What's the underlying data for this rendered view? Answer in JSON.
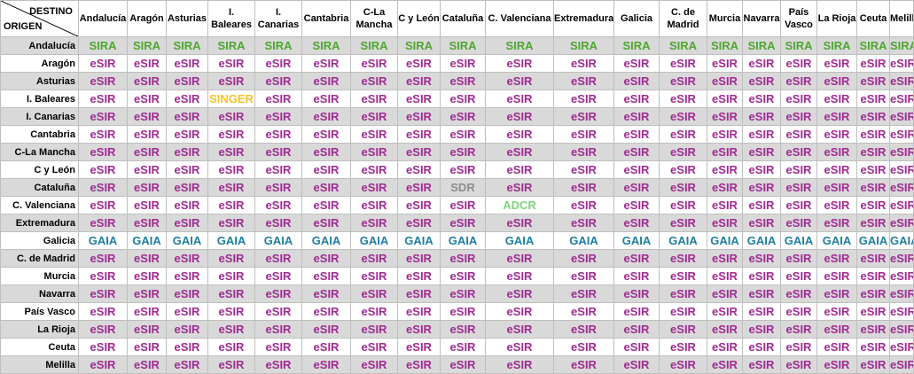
{
  "header": {
    "destino_label": "DESTINO",
    "origen_label": "ORIGEN"
  },
  "columns": [
    "Andalucía",
    "Aragón",
    "Asturias",
    "I. Baleares",
    "I. Canarias",
    "Cantabria",
    "C-La Mancha",
    "C y León",
    "Cataluña",
    "C. Valenciana",
    "Extremadura",
    "Galicia",
    "C. de Madrid",
    "Murcia",
    "Navarra",
    "País Vasco",
    "La Rioja",
    "Ceuta",
    "Melilla"
  ],
  "rows": [
    {
      "origin": "Andalucía",
      "cells": [
        "SIRA",
        "SIRA",
        "SIRA",
        "SIRA",
        "SIRA",
        "SIRA",
        "SIRA",
        "SIRA",
        "SIRA",
        "SIRA",
        "SIRA",
        "SIRA",
        "SIRA",
        "SIRA",
        "SIRA",
        "SIRA",
        "SIRA",
        "SIRA",
        "SIRA"
      ]
    },
    {
      "origin": "Aragón",
      "cells": [
        "eSIR",
        "eSIR",
        "eSIR",
        "eSIR",
        "eSIR",
        "eSIR",
        "eSIR",
        "eSIR",
        "eSIR",
        "eSIR",
        "eSIR",
        "eSIR",
        "eSIR",
        "eSIR",
        "eSIR",
        "eSIR",
        "eSIR",
        "eSIR",
        "eSIR"
      ]
    },
    {
      "origin": "Asturias",
      "cells": [
        "eSIR",
        "eSIR",
        "eSIR",
        "eSIR",
        "eSIR",
        "eSIR",
        "eSIR",
        "eSIR",
        "eSIR",
        "eSIR",
        "eSIR",
        "eSIR",
        "eSIR",
        "eSIR",
        "eSIR",
        "eSIR",
        "eSIR",
        "eSIR",
        "eSIR"
      ]
    },
    {
      "origin": "I. Baleares",
      "cells": [
        "eSIR",
        "eSIR",
        "eSIR",
        "SINGER",
        "eSIR",
        "eSIR",
        "eSIR",
        "eSIR",
        "eSIR",
        "eSIR",
        "eSIR",
        "eSIR",
        "eSIR",
        "eSIR",
        "eSIR",
        "eSIR",
        "eSIR",
        "eSIR",
        "eSIR"
      ]
    },
    {
      "origin": "I. Canarias",
      "cells": [
        "eSIR",
        "eSIR",
        "eSIR",
        "eSIR",
        "eSIR",
        "eSIR",
        "eSIR",
        "eSIR",
        "eSIR",
        "eSIR",
        "eSIR",
        "eSIR",
        "eSIR",
        "eSIR",
        "eSIR",
        "eSIR",
        "eSIR",
        "eSIR",
        "eSIR"
      ]
    },
    {
      "origin": "Cantabria",
      "cells": [
        "eSIR",
        "eSIR",
        "eSIR",
        "eSIR",
        "eSIR",
        "eSIR",
        "eSIR",
        "eSIR",
        "eSIR",
        "eSIR",
        "eSIR",
        "eSIR",
        "eSIR",
        "eSIR",
        "eSIR",
        "eSIR",
        "eSIR",
        "eSIR",
        "eSIR"
      ]
    },
    {
      "origin": "C-La Mancha",
      "cells": [
        "eSIR",
        "eSIR",
        "eSIR",
        "eSIR",
        "eSIR",
        "eSIR",
        "eSIR",
        "eSIR",
        "eSIR",
        "eSIR",
        "eSIR",
        "eSIR",
        "eSIR",
        "eSIR",
        "eSIR",
        "eSIR",
        "eSIR",
        "eSIR",
        "eSIR"
      ]
    },
    {
      "origin": "C y León",
      "cells": [
        "eSIR",
        "eSIR",
        "eSIR",
        "eSIR",
        "eSIR",
        "eSIR",
        "eSIR",
        "eSIR",
        "eSIR",
        "eSIR",
        "eSIR",
        "eSIR",
        "eSIR",
        "eSIR",
        "eSIR",
        "eSIR",
        "eSIR",
        "eSIR",
        "eSIR"
      ]
    },
    {
      "origin": "Cataluña",
      "cells": [
        "eSIR",
        "eSIR",
        "eSIR",
        "eSIR",
        "eSIR",
        "eSIR",
        "eSIR",
        "eSIR",
        "SDR",
        "eSIR",
        "eSIR",
        "eSIR",
        "eSIR",
        "eSIR",
        "eSIR",
        "eSIR",
        "eSIR",
        "eSIR",
        "eSIR"
      ]
    },
    {
      "origin": "C. Valenciana",
      "cells": [
        "eSIR",
        "eSIR",
        "eSIR",
        "eSIR",
        "eSIR",
        "eSIR",
        "eSIR",
        "eSIR",
        "eSIR",
        "ADCR",
        "eSIR",
        "eSIR",
        "eSIR",
        "eSIR",
        "eSIR",
        "eSIR",
        "eSIR",
        "eSIR",
        "eSIR"
      ]
    },
    {
      "origin": "Extremadura",
      "cells": [
        "eSIR",
        "eSIR",
        "eSIR",
        "eSIR",
        "eSIR",
        "eSIR",
        "eSIR",
        "eSIR",
        "eSIR",
        "eSIR",
        "eSIR",
        "eSIR",
        "eSIR",
        "eSIR",
        "eSIR",
        "eSIR",
        "eSIR",
        "eSIR",
        "eSIR"
      ]
    },
    {
      "origin": "Galicia",
      "cells": [
        "GAIA",
        "GAIA",
        "GAIA",
        "GAIA",
        "GAIA",
        "GAIA",
        "GAIA",
        "GAIA",
        "GAIA",
        "GAIA",
        "GAIA",
        "GAIA",
        "GAIA",
        "GAIA",
        "GAIA",
        "GAIA",
        "GAIA",
        "GAIA",
        "GAIA"
      ]
    },
    {
      "origin": "C. de Madrid",
      "cells": [
        "eSIR",
        "eSIR",
        "eSIR",
        "eSIR",
        "eSIR",
        "eSIR",
        "eSIR",
        "eSIR",
        "eSIR",
        "eSIR",
        "eSIR",
        "eSIR",
        "eSIR",
        "eSIR",
        "eSIR",
        "eSIR",
        "eSIR",
        "eSIR",
        "eSIR"
      ]
    },
    {
      "origin": "Murcia",
      "cells": [
        "eSIR",
        "eSIR",
        "eSIR",
        "eSIR",
        "eSIR",
        "eSIR",
        "eSIR",
        "eSIR",
        "eSIR",
        "eSIR",
        "eSIR",
        "eSIR",
        "eSIR",
        "eSIR",
        "eSIR",
        "eSIR",
        "eSIR",
        "eSIR",
        "eSIR"
      ]
    },
    {
      "origin": "Navarra",
      "cells": [
        "eSIR",
        "eSIR",
        "eSIR",
        "eSIR",
        "eSIR",
        "eSIR",
        "eSIR",
        "eSIR",
        "eSIR",
        "eSIR",
        "eSIR",
        "eSIR",
        "eSIR",
        "eSIR",
        "eSIR",
        "eSIR",
        "eSIR",
        "eSIR",
        "eSIR"
      ]
    },
    {
      "origin": "País Vasco",
      "cells": [
        "eSIR",
        "eSIR",
        "eSIR",
        "eSIR",
        "eSIR",
        "eSIR",
        "eSIR",
        "eSIR",
        "eSIR",
        "eSIR",
        "eSIR",
        "eSIR",
        "eSIR",
        "eSIR",
        "eSIR",
        "eSIR",
        "eSIR",
        "eSIR",
        "eSIR"
      ]
    },
    {
      "origin": "La Rioja",
      "cells": [
        "eSIR",
        "eSIR",
        "eSIR",
        "eSIR",
        "eSIR",
        "eSIR",
        "eSIR",
        "eSIR",
        "eSIR",
        "eSIR",
        "eSIR",
        "eSIR",
        "eSIR",
        "eSIR",
        "eSIR",
        "eSIR",
        "eSIR",
        "eSIR",
        "eSIR"
      ]
    },
    {
      "origin": "Ceuta",
      "cells": [
        "eSIR",
        "eSIR",
        "eSIR",
        "eSIR",
        "eSIR",
        "eSIR",
        "eSIR",
        "eSIR",
        "eSIR",
        "eSIR",
        "eSIR",
        "eSIR",
        "eSIR",
        "eSIR",
        "eSIR",
        "eSIR",
        "eSIR",
        "eSIR",
        "eSIR"
      ]
    },
    {
      "origin": "Melilla",
      "cells": [
        "eSIR",
        "eSIR",
        "eSIR",
        "eSIR",
        "eSIR",
        "eSIR",
        "eSIR",
        "eSIR",
        "eSIR",
        "eSIR",
        "eSIR",
        "eSIR",
        "eSIR",
        "eSIR",
        "eSIR",
        "eSIR",
        "eSIR",
        "eSIR",
        "eSIR"
      ]
    }
  ],
  "system_colors": {
    "eSIR": "#a02b93",
    "SIRA": "#4ea72e",
    "GAIA": "#1f7ea1",
    "SINGER": "#f6c22b",
    "SDR": "#8c8c8c",
    "ADCR": "#7fd47a"
  }
}
